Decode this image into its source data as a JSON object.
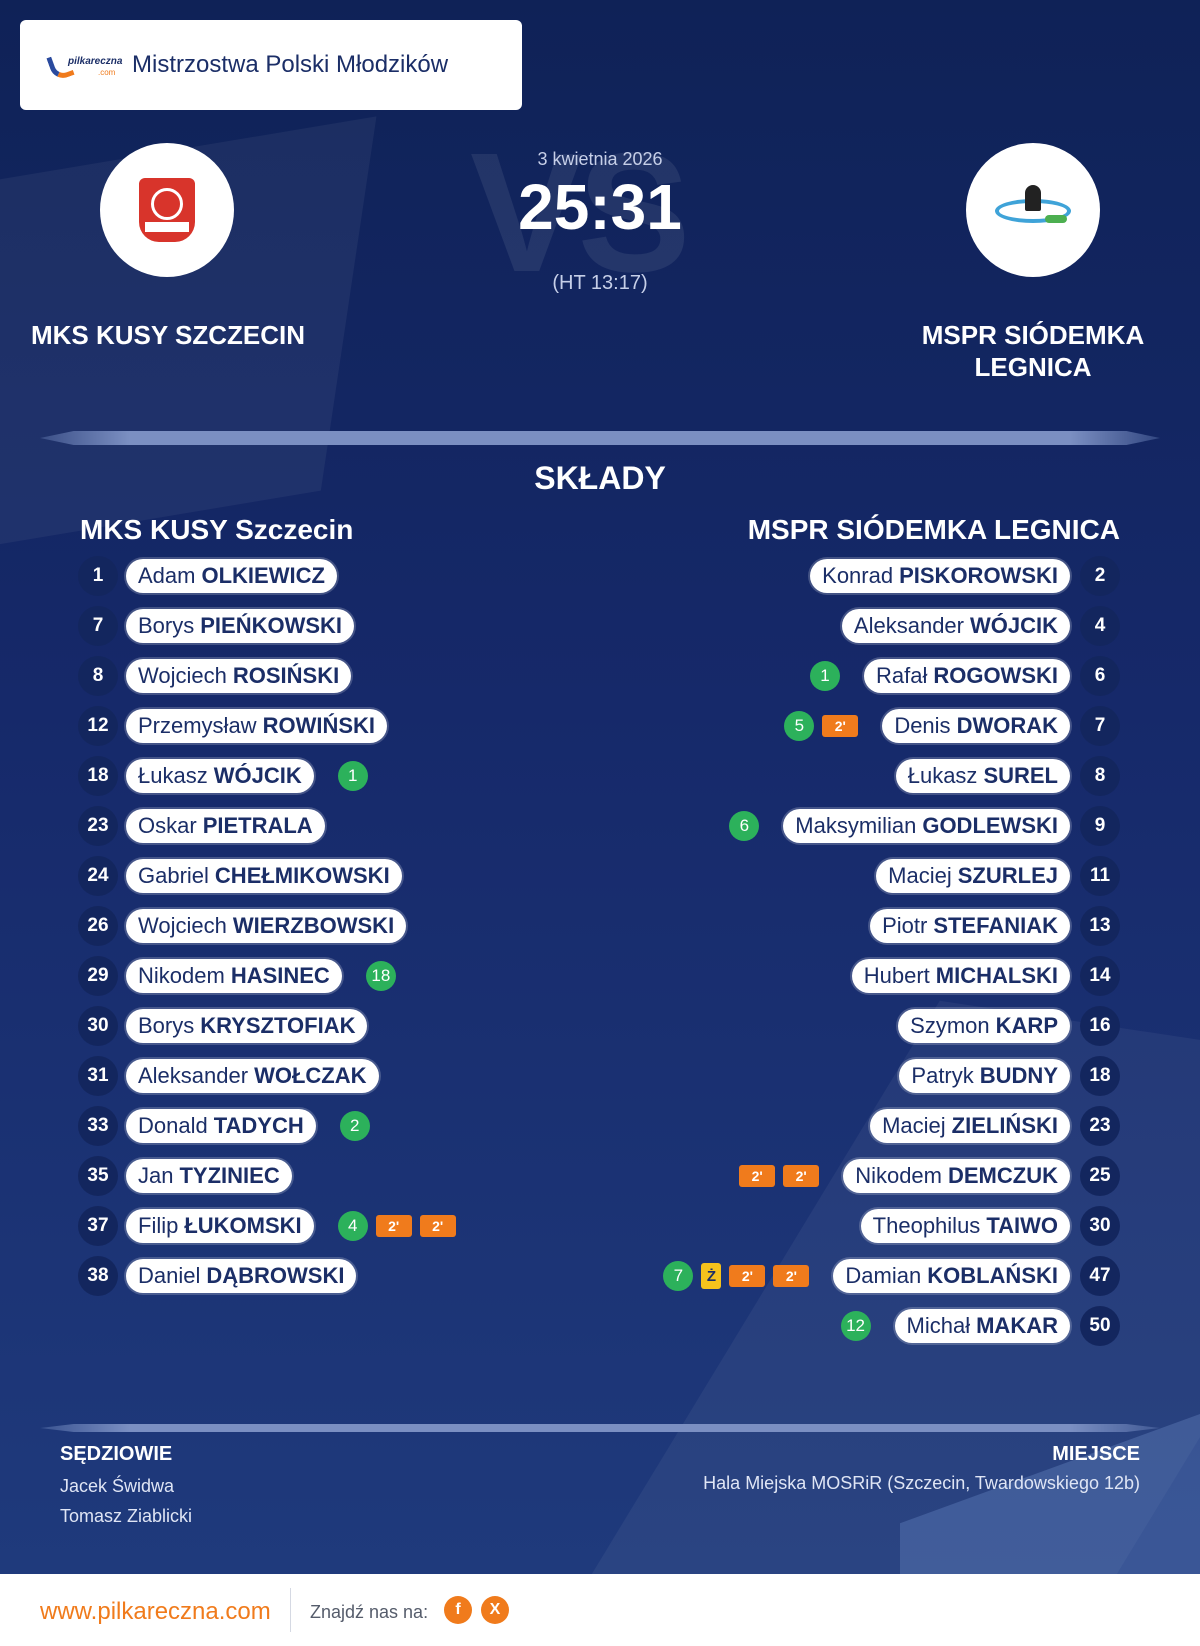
{
  "competition": "Mistrzostwa Polski Młodzików",
  "brand": {
    "logo_text_main": "pilkareczna",
    "logo_text_sub": ".com"
  },
  "match": {
    "date": "3 kwietnia 2026",
    "score": "25:31",
    "halftime": "(HT 13:17)",
    "watermark": "VS"
  },
  "home_team": {
    "name": "MKS KUSY SZCZECIN",
    "lineup_title": "MKS KUSY Szczecin",
    "logo_icon": "kusy-crest-icon"
  },
  "away_team": {
    "name_line1": "MSPR SIÓDEMKA",
    "name_line2": "LEGNICA",
    "lineup_title": "MSPR SIÓDEMKA LEGNICA",
    "logo_icon": "siodemka-crest-icon"
  },
  "section_title": "SKŁADY",
  "home_players": [
    {
      "num": "1",
      "first": "Adam",
      "last": "OLKIEWICZ"
    },
    {
      "num": "7",
      "first": "Borys",
      "last": "PIEŃKOWSKI"
    },
    {
      "num": "8",
      "first": "Wojciech",
      "last": "ROSIŃSKI"
    },
    {
      "num": "12",
      "first": "Przemysław",
      "last": "ROWIŃSKI"
    },
    {
      "num": "18",
      "first": "Łukasz",
      "last": "WÓJCIK",
      "goals": "1"
    },
    {
      "num": "23",
      "first": "Oskar",
      "last": "PIETRALA"
    },
    {
      "num": "24",
      "first": "Gabriel",
      "last": "CHEŁMIKOWSKI"
    },
    {
      "num": "26",
      "first": "Wojciech",
      "last": "WIERZBOWSKI"
    },
    {
      "num": "29",
      "first": "Nikodem",
      "last": "HASINEC",
      "goals": "18"
    },
    {
      "num": "30",
      "first": "Borys",
      "last": "KRYSZTOFIAK"
    },
    {
      "num": "31",
      "first": "Aleksander",
      "last": "WOŁCZAK"
    },
    {
      "num": "33",
      "first": "Donald",
      "last": "TADYCH",
      "goals": "2"
    },
    {
      "num": "35",
      "first": "Jan",
      "last": "TYZINIEC"
    },
    {
      "num": "37",
      "first": "Filip",
      "last": "ŁUKOMSKI",
      "goals": "4",
      "susp": [
        "2'",
        "2'"
      ]
    },
    {
      "num": "38",
      "first": "Daniel",
      "last": "DĄBROWSKI"
    }
  ],
  "away_players": [
    {
      "num": "2",
      "first": "Konrad",
      "last": "PISKOROWSKI"
    },
    {
      "num": "4",
      "first": "Aleksander",
      "last": "WÓJCIK"
    },
    {
      "num": "6",
      "first": "Rafał",
      "last": "ROGOWSKI",
      "goals": "1"
    },
    {
      "num": "7",
      "first": "Denis",
      "last": "DWORAK",
      "goals": "5",
      "susp": [
        "2'"
      ]
    },
    {
      "num": "8",
      "first": "Łukasz",
      "last": "SUREL"
    },
    {
      "num": "9",
      "first": "Maksymilian",
      "last": "GODLEWSKI",
      "goals": "6"
    },
    {
      "num": "11",
      "first": "Maciej",
      "last": "SZURLEJ"
    },
    {
      "num": "13",
      "first": "Piotr",
      "last": "STEFANIAK"
    },
    {
      "num": "14",
      "first": "Hubert",
      "last": "MICHALSKI"
    },
    {
      "num": "16",
      "first": "Szymon",
      "last": "KARP"
    },
    {
      "num": "18",
      "first": "Patryk",
      "last": "BUDNY"
    },
    {
      "num": "23",
      "first": "Maciej",
      "last": "ZIELIŃSKI"
    },
    {
      "num": "25",
      "first": "Nikodem",
      "last": "DEMCZUK",
      "susp": [
        "2'",
        "2'"
      ]
    },
    {
      "num": "30",
      "first": "Theophilus",
      "last": "TAIWO"
    },
    {
      "num": "47",
      "first": "Damian",
      "last": "KOBLAŃSKI",
      "goals": "7",
      "yellow": "Ż",
      "susp": [
        "2'",
        "2'"
      ]
    },
    {
      "num": "50",
      "first": "Michał",
      "last": "MAKAR",
      "goals": "12"
    }
  ],
  "referees": {
    "title": "SĘDZIOWIE",
    "names": [
      "Jacek Świdwa",
      "Tomasz Ziablicki"
    ]
  },
  "venue": {
    "title": "MIEJSCE",
    "name": "Hala Miejska MOSRiR (Szczecin, Twardowskiego 12b)"
  },
  "footer": {
    "site": "www.pilkareczna.com",
    "find_us": "Znajdź nas na:",
    "facebook": "f",
    "x": "X"
  },
  "colors": {
    "navy": "#1b2e67",
    "orange": "#f07b1c",
    "goal_green": "#2cb15b",
    "yellow_card": "#f5c21c"
  }
}
